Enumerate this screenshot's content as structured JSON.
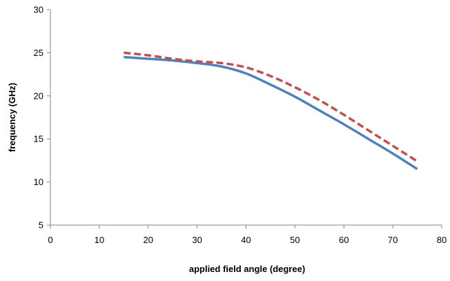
{
  "chart_data": {
    "type": "line",
    "title": "",
    "xlabel": "applied field angle  (degree)",
    "ylabel": "frequency  (GHz)",
    "xlim": [
      0,
      80
    ],
    "ylim": [
      5,
      30
    ],
    "xticks": [
      0,
      10,
      20,
      30,
      40,
      50,
      60,
      70,
      80
    ],
    "yticks": [
      5,
      10,
      15,
      20,
      25,
      30
    ],
    "grid": false,
    "legend": "none",
    "series": [
      {
        "color": "#4F81BD",
        "style": "solid",
        "x": [
          15,
          20,
          25,
          30,
          35,
          40,
          45,
          50,
          55,
          60,
          65,
          70,
          75
        ],
        "y": [
          24.5,
          24.3,
          24.1,
          23.8,
          23.4,
          22.6,
          21.3,
          19.9,
          18.3,
          16.7,
          15.0,
          13.3,
          11.5
        ]
      },
      {
        "color": "#C0504D",
        "style": "dashed",
        "x": [
          15,
          20,
          25,
          30,
          35,
          40,
          45,
          50,
          55,
          60,
          65,
          70,
          75
        ],
        "y": [
          25.0,
          24.7,
          24.3,
          24.0,
          23.8,
          23.3,
          22.3,
          21.0,
          19.5,
          17.8,
          16.0,
          14.2,
          12.4
        ]
      }
    ]
  }
}
